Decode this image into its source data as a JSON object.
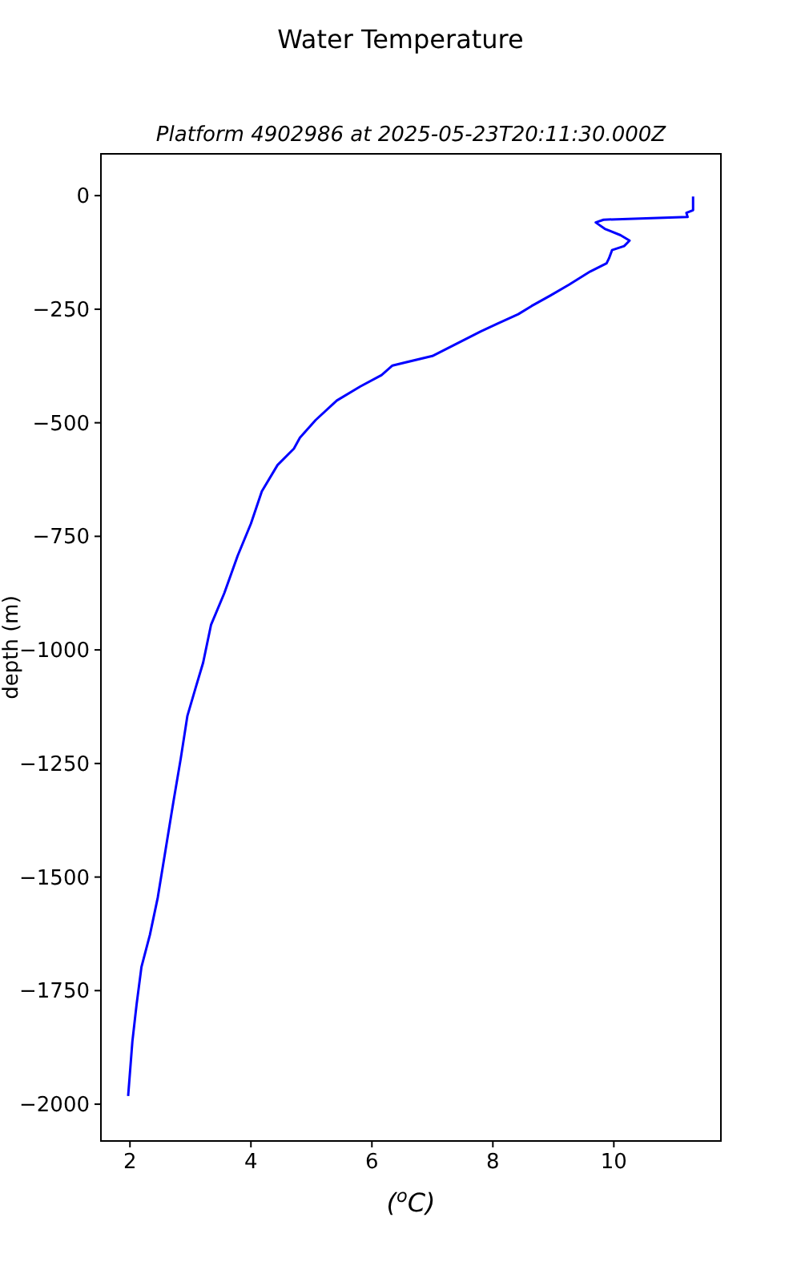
{
  "chart_data": {
    "type": "line",
    "title": "Water Temperature",
    "subtitle": "Platform 4902986 at 2025-05-23T20:11:30.000Z",
    "xlabel": "($^{o}$C)",
    "ylabel": "depth (m)",
    "xlim": [
      1.52,
      11.77
    ],
    "xticks": [
      2,
      4,
      6,
      8,
      10
    ],
    "ylim": [
      -2081,
      92
    ],
    "yticks": [
      0,
      -250,
      -500,
      -750,
      -1000,
      -1250,
      -1500,
      -1750,
      -2000
    ],
    "grid": false,
    "series": [
      {
        "color": "#0000ff",
        "x": [
          11.31,
          11.31,
          11.2,
          11.22,
          9.83,
          9.7,
          9.85,
          10.11,
          10.26,
          10.17,
          9.97,
          9.92,
          9.88,
          9.61,
          9.26,
          8.95,
          8.64,
          8.42,
          8.07,
          7.8,
          7.0,
          6.34,
          6.16,
          5.81,
          5.42,
          5.07,
          4.81,
          4.71,
          4.44,
          4.18,
          4.0,
          3.78,
          3.56,
          3.34,
          3.21,
          3.08,
          2.95,
          2.84,
          2.72,
          2.59,
          2.46,
          2.33,
          2.19,
          2.11,
          2.04,
          1.97
        ],
        "values": [
          -2,
          -32,
          -38,
          -47,
          -53,
          -59,
          -73,
          -87,
          -99,
          -111,
          -120,
          -138,
          -149,
          -167,
          -196,
          -220,
          -243,
          -261,
          -282,
          -299,
          -353,
          -374,
          -395,
          -420,
          -451,
          -494,
          -533,
          -557,
          -593,
          -651,
          -722,
          -793,
          -875,
          -945,
          -1028,
          -1086,
          -1145,
          -1239,
          -1333,
          -1439,
          -1545,
          -1627,
          -1698,
          -1780,
          -1862,
          -1982
        ]
      }
    ]
  }
}
